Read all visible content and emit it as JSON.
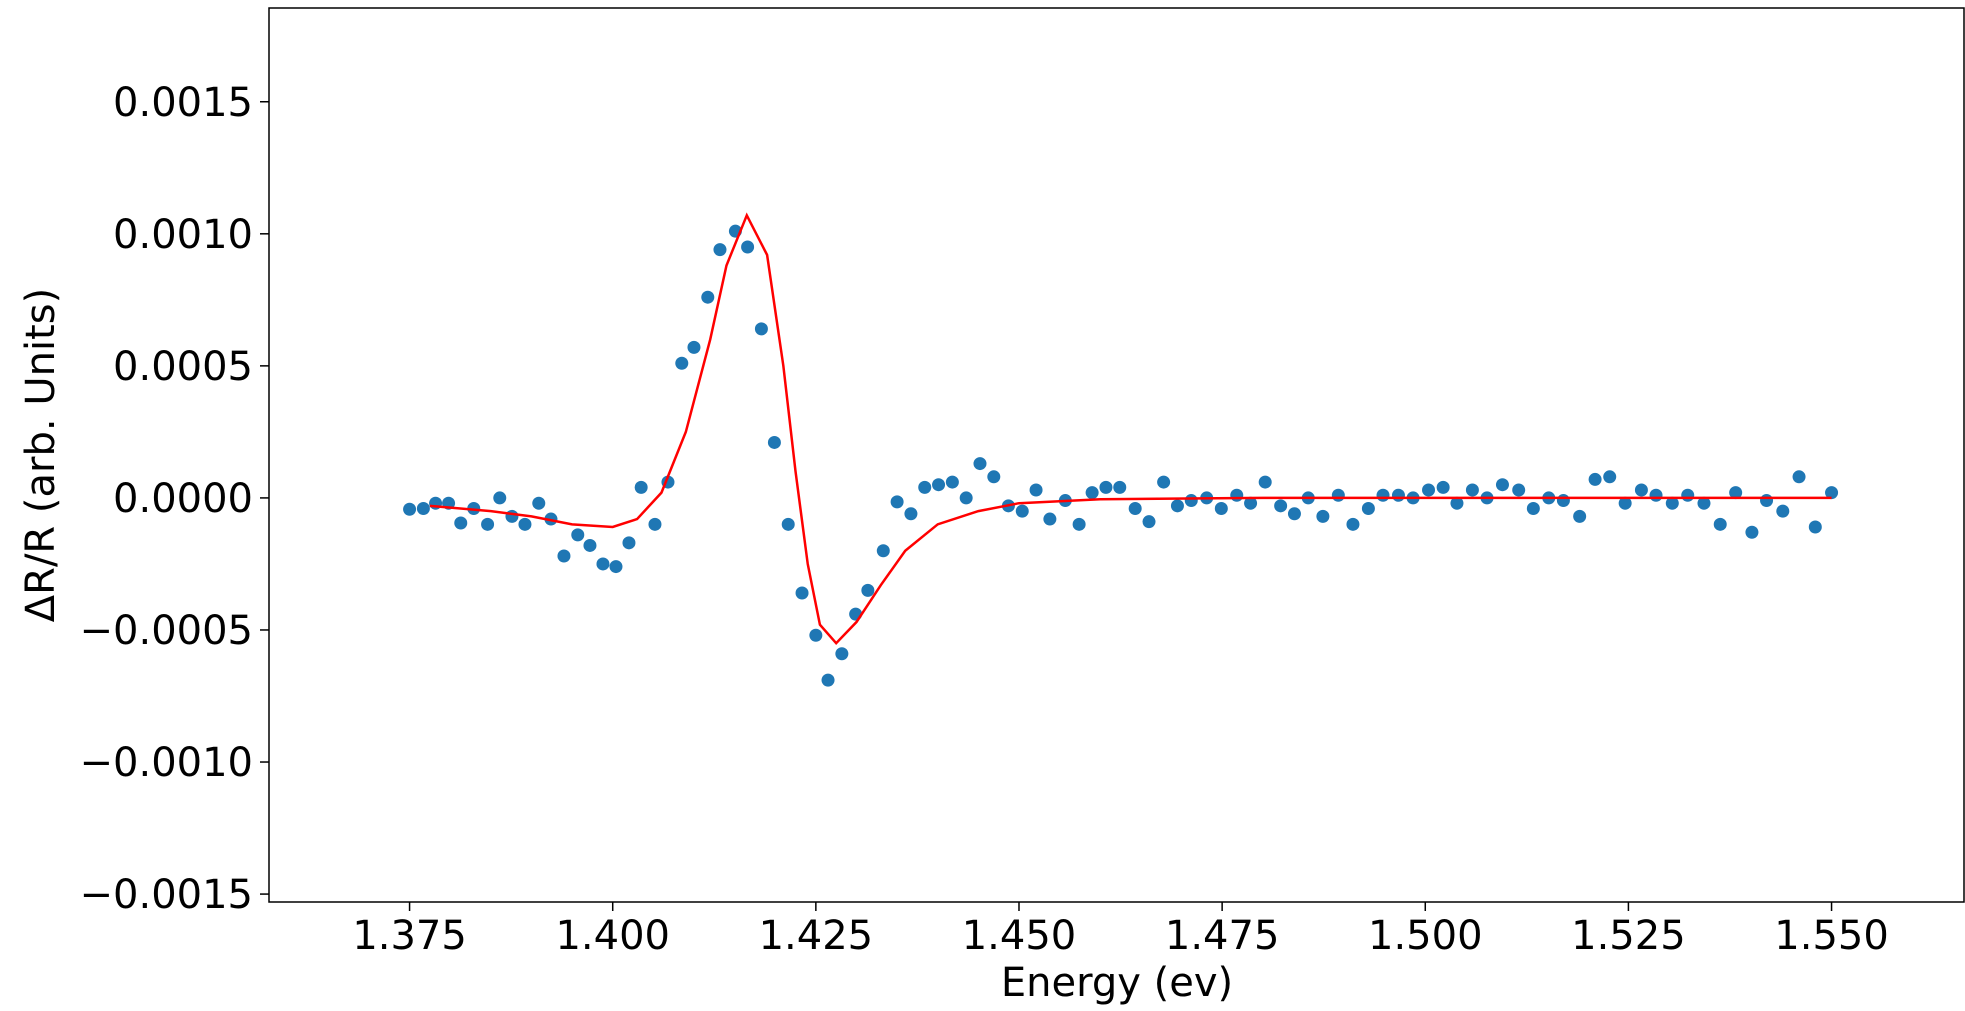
{
  "chart_data": {
    "type": "scatter",
    "xlabel": "Energy (ev)",
    "ylabel": "ΔR/R (arb. Units)",
    "xlim": [
      1.3577,
      1.5663
    ],
    "ylim": [
      -0.00153,
      0.001855
    ],
    "xticks": [
      1.375,
      {
        "value": 1.4,
        "label": "1.400"
      },
      {
        "value": 1.425,
        "label": "1.425"
      },
      {
        "value": 1.45,
        "label": "1.450"
      },
      {
        "value": 1.475,
        "label": "1.475"
      },
      {
        "value": 1.5,
        "label": "1.500"
      },
      {
        "value": 1.525,
        "label": "1.525"
      },
      {
        "value": 1.55,
        "label": "1.550"
      }
    ],
    "yticks": [
      {
        "value": -0.0015,
        "label": "−0.0015"
      },
      {
        "value": -0.001,
        "label": "−0.0010"
      },
      {
        "value": -0.0005,
        "label": "−0.0005"
      },
      {
        "value": 0,
        "label": "0.0000"
      },
      {
        "value": 0.0005,
        "label": "0.0005"
      },
      {
        "value": 0.001,
        "label": "0.0010"
      },
      {
        "value": 0.0015,
        "label": "0.0015"
      }
    ],
    "series": [
      {
        "style": "scatter",
        "color": "#1f77b4",
        "x": [
          1.375,
          1.3767,
          1.3782,
          1.3798,
          1.3813,
          1.3829,
          1.3846,
          1.3861,
          1.3876,
          1.3892,
          1.3909,
          1.3924,
          1.394,
          1.3957,
          1.3972,
          1.3988,
          1.4004,
          1.402,
          1.4035,
          1.4052,
          1.4068,
          1.4085,
          1.41,
          1.4117,
          1.4132,
          1.4151,
          1.4166,
          1.4183,
          1.4199,
          1.4216,
          1.4233,
          1.425,
          1.4265,
          1.4282,
          1.4299,
          1.4314,
          1.4333,
          1.435,
          1.4367,
          1.4384,
          1.4401,
          1.4418,
          1.4435,
          1.4452,
          1.4469,
          1.4487,
          1.4504,
          1.4521,
          1.4538,
          1.4557,
          1.4574,
          1.459,
          1.4607,
          1.4624,
          1.4643,
          1.466,
          1.4678,
          1.4695,
          1.4712,
          1.4731,
          1.4749,
          1.4768,
          1.4785,
          1.4803,
          1.4822,
          1.4839,
          1.4856,
          1.4874,
          1.4893,
          1.4911,
          1.493,
          1.4948,
          1.4967,
          1.4985,
          1.5004,
          1.5022,
          1.5039,
          1.5058,
          1.5076,
          1.5095,
          1.5115,
          1.5133,
          1.5152,
          1.517,
          1.519,
          1.5209,
          1.5227,
          1.5246,
          1.5266,
          1.5284,
          1.5304,
          1.5323,
          1.5343,
          1.5363,
          1.5382,
          1.5402,
          1.542,
          1.544,
          1.546,
          1.548,
          1.55
        ],
        "values": [
          -4.3e-05,
          -4e-05,
          -2e-05,
          -2e-05,
          -9.5e-05,
          -4e-05,
          -0.0001,
          0,
          -7e-05,
          -0.0001,
          -2e-05,
          -8e-05,
          -0.00022,
          -0.00014,
          -0.00018,
          -0.00025,
          -0.00026,
          -0.00017,
          4e-05,
          -0.0001,
          6e-05,
          0.00051,
          0.00057,
          0.00076,
          0.00094,
          0.00101,
          0.00095,
          0.00064,
          0.00021,
          -0.0001,
          -0.00036,
          -0.00052,
          -0.00069,
          -0.00059,
          -0.00044,
          -0.00035,
          -0.0002,
          -1.5e-05,
          -6e-05,
          4e-05,
          5e-05,
          6e-05,
          0,
          0.00013,
          8e-05,
          -3e-05,
          -5e-05,
          3e-05,
          -8e-05,
          -1e-05,
          -0.0001,
          2e-05,
          4e-05,
          4e-05,
          -4e-05,
          -9e-05,
          6e-05,
          -3e-05,
          -1e-05,
          0,
          -4e-05,
          1e-05,
          -2e-05,
          6e-05,
          -3e-05,
          -6e-05,
          0,
          -7e-05,
          1e-05,
          -0.0001,
          -4e-05,
          1e-05,
          1e-05,
          0,
          3e-05,
          4e-05,
          -2e-05,
          3e-05,
          0,
          5e-05,
          3e-05,
          -4e-05,
          0,
          -1e-05,
          -7e-05,
          7e-05,
          8e-05,
          -2e-05,
          3e-05,
          1e-05,
          -2e-05,
          1e-05,
          -2e-05,
          -0.0001,
          2e-05,
          -0.00013,
          -1e-05,
          -5e-05,
          8e-05,
          -0.00011,
          2e-05
        ]
      },
      {
        "style": "line",
        "color": "#ff0000",
        "x": [
          1.3775,
          1.385,
          1.39,
          1.395,
          1.4,
          1.403,
          1.406,
          1.409,
          1.412,
          1.414,
          1.4165,
          1.419,
          1.421,
          1.4225,
          1.424,
          1.4255,
          1.4275,
          1.43,
          1.433,
          1.436,
          1.44,
          1.445,
          1.45,
          1.46,
          1.48,
          1.55
        ],
        "values": [
          -3e-05,
          -5e-05,
          -7e-05,
          -0.0001,
          -0.00011,
          -8e-05,
          2e-05,
          0.00025,
          0.0006,
          0.00088,
          0.00107,
          0.00092,
          0.0005,
          0.0001,
          -0.00025,
          -0.00048,
          -0.00055,
          -0.00047,
          -0.00033,
          -0.0002,
          -0.0001,
          -5e-05,
          -2e-05,
          -5e-06,
          0,
          0
        ]
      }
    ]
  }
}
